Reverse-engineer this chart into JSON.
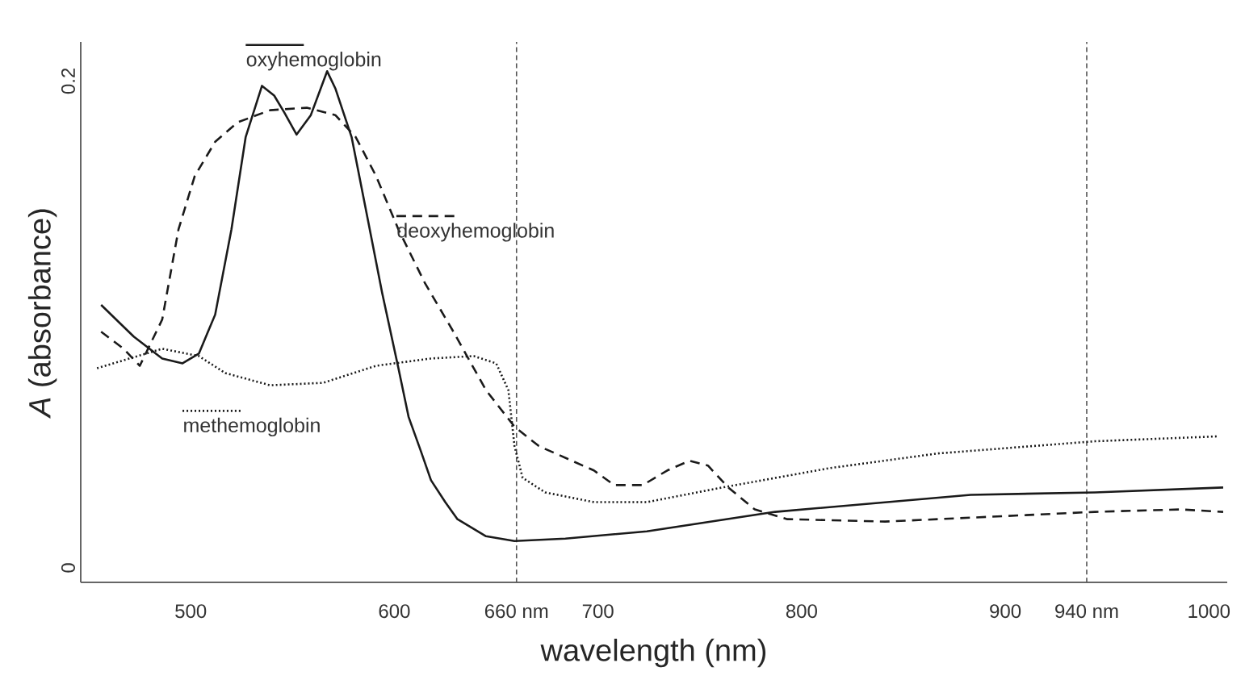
{
  "chart_data": {
    "type": "line",
    "xlabel": "wavelength (nm)",
    "ylabel": "*A* (absorbance)",
    "xlim": [
      446,
      1009
    ],
    "ylim": [
      -0.006,
      0.216
    ],
    "xticks": [
      500,
      600,
      {
        "value": 660,
        "label": "660 nm"
      },
      700,
      800,
      900,
      {
        "value": 940,
        "label": "940 nm"
      },
      1000
    ],
    "yticks": [
      0,
      0.2
    ],
    "grid": false,
    "marker": "none",
    "legend": "top left",
    "ref_lines": [
      {
        "axis": "x",
        "value": 660,
        "color": "#555555",
        "line_style": "dashed"
      },
      {
        "axis": "x",
        "value": 940,
        "color": "#555555",
        "line_style": "dashed"
      }
    ],
    "series": [
      {
        "name": "oxyhemoglobin",
        "color": "#1a1a1a",
        "line_style": "solid",
        "x": [
          456,
          472,
          486,
          496,
          504,
          512,
          520,
          527,
          535,
          541,
          546,
          552,
          559,
          567,
          571,
          579,
          587,
          594,
          602,
          607,
          613,
          618,
          625,
          631,
          645,
          659,
          684,
          724,
          787,
          883,
          944,
          1007
        ],
        "values": [
          0.108,
          0.095,
          0.086,
          0.084,
          0.088,
          0.104,
          0.139,
          0.177,
          0.198,
          0.194,
          0.187,
          0.178,
          0.186,
          0.204,
          0.197,
          0.177,
          0.143,
          0.113,
          0.082,
          0.062,
          0.048,
          0.036,
          0.027,
          0.02,
          0.013,
          0.011,
          0.012,
          0.015,
          0.023,
          0.03,
          0.031,
          0.033
        ]
      },
      {
        "name": "deoxyhemoglobin",
        "color": "#1a1a1a",
        "line_style": "dashed",
        "x": [
          456,
          467,
          475,
          486,
          494,
          502,
          512,
          523,
          539,
          557,
          571,
          581,
          591,
          602,
          615,
          629,
          645,
          659,
          671,
          698,
          708,
          722,
          734,
          745,
          754,
          764,
          777,
          793,
          841,
          893,
          944,
          986,
          1007
        ],
        "values": [
          0.097,
          0.09,
          0.083,
          0.102,
          0.139,
          0.161,
          0.175,
          0.183,
          0.188,
          0.189,
          0.186,
          0.177,
          0.161,
          0.139,
          0.117,
          0.097,
          0.073,
          0.058,
          0.05,
          0.04,
          0.034,
          0.034,
          0.04,
          0.044,
          0.042,
          0.033,
          0.024,
          0.02,
          0.019,
          0.021,
          0.023,
          0.024,
          0.023
        ]
      },
      {
        "name": "methemoglobin",
        "color": "#1a1a1a",
        "line_style": "dotted",
        "x": [
          454,
          486,
          504,
          517,
          539,
          565,
          591,
          618,
          639,
          650,
          656,
          659,
          663,
          674,
          698,
          724,
          761,
          814,
          867,
          944,
          1004
        ],
        "values": [
          0.082,
          0.09,
          0.087,
          0.08,
          0.075,
          0.076,
          0.083,
          0.086,
          0.087,
          0.084,
          0.073,
          0.05,
          0.037,
          0.031,
          0.027,
          0.027,
          0.033,
          0.041,
          0.047,
          0.052,
          0.054
        ]
      }
    ]
  }
}
